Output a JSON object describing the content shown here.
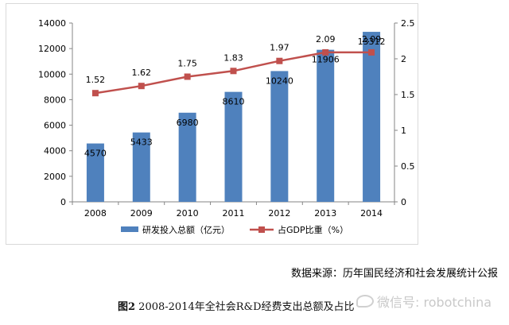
{
  "chart_data": {
    "type": "bar",
    "categories": [
      "2008",
      "2009",
      "2010",
      "2011",
      "2012",
      "2013",
      "2014"
    ],
    "series": [
      {
        "name": "研发投入总额（亿元）",
        "type": "bar",
        "axis": "left",
        "color": "#4f81bd",
        "values": [
          4570,
          5433,
          6980,
          8610,
          10240,
          11906,
          13312
        ],
        "labels": [
          "4570",
          "5433",
          "6980",
          "8610",
          "10240",
          "11906",
          "13312"
        ]
      },
      {
        "name": "占GDP比重（%）",
        "type": "line",
        "axis": "right",
        "color": "#c0504d",
        "values": [
          1.52,
          1.62,
          1.75,
          1.83,
          1.97,
          2.09,
          2.09
        ],
        "labels": [
          "1.52",
          "1.62",
          "1.75",
          "1.83",
          "1.97",
          "2.09",
          "2.09"
        ]
      }
    ],
    "y_left": {
      "min": 0,
      "max": 14000,
      "ticks": [
        "0",
        "2000",
        "4000",
        "6000",
        "8000",
        "10000",
        "12000",
        "14000"
      ]
    },
    "y_right": {
      "min": 0,
      "max": 2.5,
      "ticks": [
        "0",
        "0.5",
        "1",
        "1.5",
        "2",
        "2.5"
      ]
    },
    "grid": false,
    "legend_position": "bottom"
  },
  "source_text": "数据来源：历年国民经济和社会发展统计公报",
  "caption": {
    "fig_label": "图2",
    "text": " 2008-2014年全社会R&D经费支出总额及占比"
  },
  "watermark": {
    "icon": "wechat-icon",
    "text": "微信号: robotchina"
  }
}
